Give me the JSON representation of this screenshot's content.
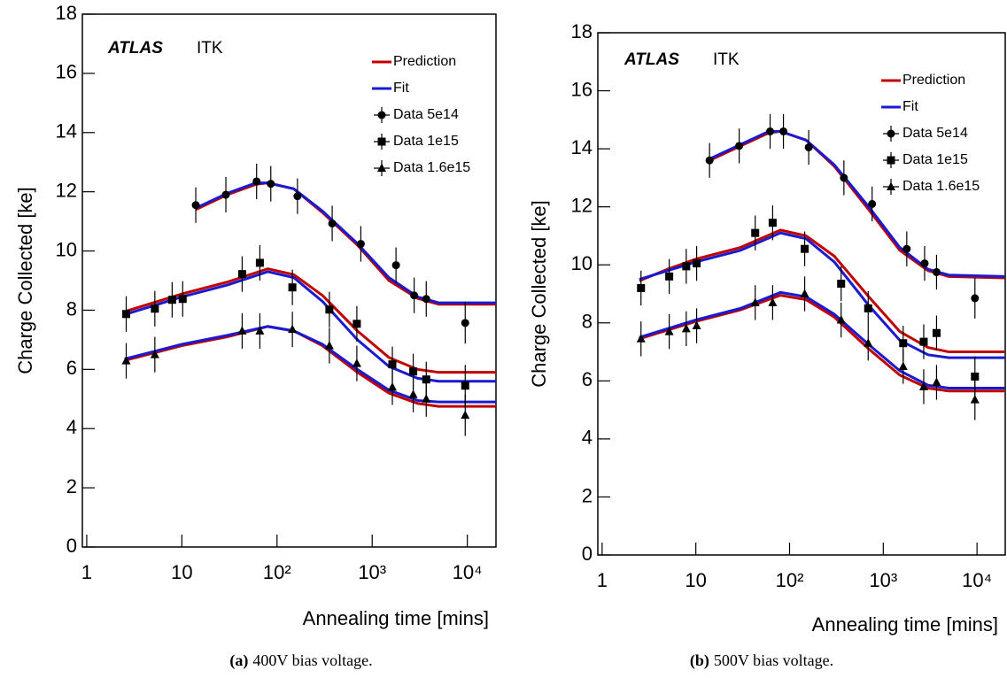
{
  "chart_data": [
    {
      "type": "scatter",
      "annotations": [
        "ATLAS",
        "ITK"
      ],
      "x_label": "Annealing time [mins]",
      "y_label": "Charge Collected [ke]",
      "caption": {
        "label": "(a)",
        "text": "400V bias voltage."
      },
      "xscale": "log",
      "xlim": [
        0.9,
        20000
      ],
      "ylim": [
        0,
        18
      ],
      "xticks": [
        1,
        10,
        {
          "value": 100,
          "label": "10²"
        },
        {
          "value": 1000,
          "label": "10³"
        },
        {
          "value": 10000,
          "label": "10⁴"
        }
      ],
      "yticks": [
        0,
        2,
        4,
        6,
        8,
        10,
        12,
        14,
        16,
        18
      ],
      "legend": "upper right",
      "series": [
        {
          "name": "Prediction",
          "color": "#c00000",
          "lines": [
            {
              "x": [
                14,
                30,
                60,
                80,
                150,
                300,
                700,
                1500,
                3000,
                5000,
                20000
              ],
              "values": [
                11.4,
                11.9,
                12.25,
                12.3,
                12.1,
                11.3,
                10.2,
                9.0,
                8.4,
                8.2,
                8.2
              ]
            },
            {
              "x": [
                2.5,
                5,
                10,
                30,
                80,
                150,
                300,
                700,
                1500,
                3000,
                5000,
                20000
              ],
              "values": [
                7.95,
                8.25,
                8.55,
                8.95,
                9.4,
                9.2,
                8.5,
                7.3,
                6.4,
                6.0,
                5.9,
                5.9
              ]
            },
            {
              "x": [
                2.5,
                5,
                10,
                30,
                80,
                150,
                300,
                700,
                1500,
                3000,
                5000,
                20000
              ],
              "values": [
                6.3,
                6.55,
                6.8,
                7.1,
                7.45,
                7.3,
                6.8,
                5.9,
                5.2,
                4.85,
                4.75,
                4.75
              ]
            }
          ]
        },
        {
          "name": "Fit",
          "color": "#1a1ad0",
          "lines": [
            {
              "x": [
                14,
                30,
                60,
                80,
                150,
                300,
                700,
                1500,
                3000,
                5000,
                20000
              ],
              "values": [
                11.45,
                11.95,
                12.3,
                12.3,
                12.1,
                11.35,
                10.25,
                9.1,
                8.45,
                8.25,
                8.25
              ]
            },
            {
              "x": [
                2.5,
                5,
                10,
                30,
                80,
                150,
                300,
                700,
                1500,
                3000,
                5000,
                20000
              ],
              "values": [
                7.85,
                8.15,
                8.45,
                8.85,
                9.3,
                9.1,
                8.3,
                7.0,
                6.1,
                5.7,
                5.6,
                5.6
              ]
            },
            {
              "x": [
                2.5,
                5,
                10,
                30,
                80,
                150,
                300,
                700,
                1500,
                3000,
                5000,
                20000
              ],
              "values": [
                6.35,
                6.6,
                6.85,
                7.15,
                7.45,
                7.3,
                6.85,
                6.0,
                5.3,
                4.95,
                4.9,
                4.9
              ]
            }
          ]
        },
        {
          "name": "Data 5e14",
          "color": "#000000",
          "marker": "circle",
          "x": [
            14,
            29,
            61,
            86,
            164,
            380,
            760,
            1780,
            2760,
            3700,
            9500
          ],
          "values": [
            11.55,
            11.9,
            12.35,
            12.27,
            11.85,
            10.93,
            10.24,
            9.52,
            8.5,
            8.38,
            7.57
          ],
          "errors": [
            0.6,
            0.6,
            0.6,
            0.6,
            0.6,
            0.6,
            0.6,
            0.6,
            0.6,
            0.6,
            0.7
          ]
        },
        {
          "name": "Data 1e15",
          "color": "#000000",
          "marker": "square",
          "x": [
            2.6,
            5.2,
            7.9,
            10.2,
            43,
            66,
            145,
            355,
            690,
            1630,
            2700,
            3700,
            9500
          ],
          "values": [
            7.87,
            8.05,
            8.35,
            8.38,
            9.22,
            9.6,
            8.77,
            8.02,
            7.54,
            6.17,
            5.93,
            5.66,
            5.45
          ],
          "errors": [
            0.6,
            0.6,
            0.6,
            0.6,
            0.6,
            0.6,
            0.6,
            0.6,
            0.6,
            0.6,
            0.6,
            0.6,
            0.7
          ]
        },
        {
          "name": "Data 1.6e15",
          "color": "#000000",
          "marker": "triangle",
          "x": [
            2.6,
            5.2,
            43,
            66,
            145,
            355,
            690,
            1630,
            2700,
            3700,
            9500
          ],
          "values": [
            6.29,
            6.5,
            7.3,
            7.3,
            7.35,
            6.8,
            6.2,
            5.4,
            5.15,
            5.0,
            4.45
          ],
          "errors": [
            0.6,
            0.6,
            0.6,
            0.6,
            0.6,
            0.6,
            0.6,
            0.6,
            0.6,
            0.6,
            0.7
          ]
        }
      ]
    },
    {
      "type": "scatter",
      "annotations": [
        "ATLAS",
        "ITK"
      ],
      "x_label": "Annealing time [mins]",
      "y_label": "Charge Collected [ke]",
      "caption": {
        "label": "(b)",
        "text": "500V bias voltage."
      },
      "xscale": "log",
      "xlim": [
        0.9,
        20000
      ],
      "ylim": [
        0,
        18
      ],
      "xticks": [
        1,
        10,
        {
          "value": 100,
          "label": "10²"
        },
        {
          "value": 1000,
          "label": "10³"
        },
        {
          "value": 10000,
          "label": "10⁴"
        }
      ],
      "yticks": [
        0,
        2,
        4,
        6,
        8,
        10,
        12,
        14,
        16,
        18
      ],
      "legend": "upper right",
      "series": [
        {
          "name": "Prediction",
          "color": "#c00000",
          "lines": [
            {
              "x": [
                14,
                30,
                60,
                80,
                150,
                300,
                700,
                1500,
                3000,
                5000,
                20000
              ],
              "values": [
                13.6,
                14.1,
                14.55,
                14.6,
                14.3,
                13.4,
                11.9,
                10.5,
                9.8,
                9.6,
                9.55
              ]
            },
            {
              "x": [
                2.5,
                5,
                10,
                30,
                80,
                150,
                300,
                700,
                1500,
                3000,
                5000,
                20000
              ],
              "values": [
                9.45,
                9.85,
                10.2,
                10.6,
                11.2,
                11.0,
                10.3,
                8.9,
                7.7,
                7.15,
                7.0,
                7.0
              ]
            },
            {
              "x": [
                2.5,
                5,
                10,
                30,
                80,
                150,
                300,
                700,
                1500,
                3000,
                5000,
                20000
              ],
              "values": [
                7.45,
                7.75,
                8.05,
                8.45,
                8.95,
                8.8,
                8.2,
                7.1,
                6.2,
                5.75,
                5.65,
                5.65
              ]
            }
          ]
        },
        {
          "name": "Fit",
          "color": "#1a1ad0",
          "lines": [
            {
              "x": [
                14,
                30,
                60,
                80,
                150,
                300,
                700,
                1500,
                3000,
                5000,
                20000
              ],
              "values": [
                13.65,
                14.15,
                14.6,
                14.6,
                14.3,
                13.45,
                12.0,
                10.6,
                9.85,
                9.65,
                9.6
              ]
            },
            {
              "x": [
                2.5,
                5,
                10,
                30,
                80,
                150,
                300,
                700,
                1500,
                3000,
                5000,
                20000
              ],
              "values": [
                9.5,
                9.8,
                10.1,
                10.5,
                11.1,
                10.9,
                10.1,
                8.6,
                7.4,
                6.9,
                6.8,
                6.8
              ]
            },
            {
              "x": [
                2.5,
                5,
                10,
                30,
                80,
                150,
                300,
                700,
                1500,
                3000,
                5000,
                20000
              ],
              "values": [
                7.5,
                7.8,
                8.1,
                8.5,
                9.05,
                8.9,
                8.3,
                7.25,
                6.35,
                5.85,
                5.75,
                5.75
              ]
            }
          ]
        },
        {
          "name": "Data 5e14",
          "color": "#000000",
          "marker": "circle",
          "x": [
            14,
            29,
            62,
            86,
            160,
            380,
            760,
            1780,
            2760,
            3700,
            9500
          ],
          "values": [
            13.6,
            14.1,
            14.6,
            14.6,
            14.05,
            13.0,
            12.1,
            10.55,
            10.05,
            9.75,
            8.85
          ],
          "errors": [
            0.6,
            0.6,
            0.6,
            0.6,
            0.6,
            0.6,
            0.6,
            0.6,
            0.6,
            0.6,
            0.7
          ]
        },
        {
          "name": "Data 1e15",
          "color": "#000000",
          "marker": "square",
          "x": [
            2.6,
            5.2,
            7.9,
            10.2,
            43,
            66,
            145,
            355,
            690,
            1630,
            2700,
            3700,
            9500
          ],
          "values": [
            9.2,
            9.6,
            9.95,
            10.05,
            11.1,
            11.45,
            10.55,
            9.35,
            8.5,
            7.3,
            7.35,
            7.65,
            6.15
          ],
          "errors": [
            0.6,
            0.6,
            0.6,
            0.6,
            0.6,
            0.6,
            0.6,
            0.6,
            0.6,
            0.6,
            0.6,
            0.6,
            0.7
          ]
        },
        {
          "name": "Data 1.6e15",
          "color": "#000000",
          "marker": "triangle",
          "x": [
            2.6,
            5.2,
            7.9,
            10.2,
            43,
            66,
            145,
            355,
            690,
            1630,
            2700,
            3700,
            9500
          ],
          "values": [
            7.45,
            7.7,
            7.8,
            7.9,
            8.7,
            8.7,
            9.0,
            8.1,
            7.3,
            6.5,
            5.8,
            5.95,
            5.35
          ],
          "errors": [
            0.6,
            0.6,
            0.6,
            0.6,
            0.6,
            0.6,
            0.6,
            0.6,
            0.6,
            0.6,
            0.6,
            0.6,
            0.7
          ]
        }
      ]
    }
  ]
}
